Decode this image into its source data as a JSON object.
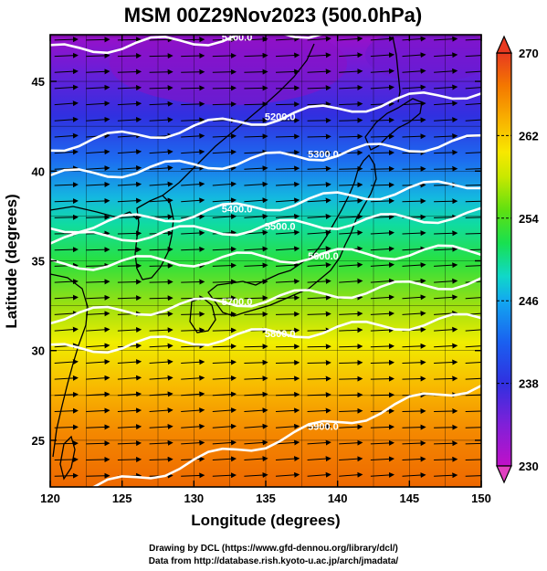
{
  "title": "MSM 00Z29Nov2023 (500.0hPa)",
  "x_axis_label": "Longitude (degrees)",
  "y_axis_label": "Latitude  (degrees)",
  "x_ticks": [
    120,
    125,
    130,
    135,
    140,
    145,
    150
  ],
  "y_ticks": [
    25,
    30,
    35,
    40,
    45
  ],
  "x_range": [
    120,
    150
  ],
  "y_range": [
    22.4,
    47.6
  ],
  "colorbar": {
    "min": 230,
    "max": 270,
    "ticks": [
      230,
      238,
      246,
      254,
      262,
      270
    ],
    "colors": [
      "#b000c8",
      "#7a1ed8",
      "#3a2ce0",
      "#1a5ef0",
      "#12a0f0",
      "#10d8d0",
      "#10e070",
      "#40e020",
      "#a0e010",
      "#f0f000",
      "#f8c000",
      "#f89000",
      "#f06000",
      "#e83020"
    ]
  },
  "contours": [
    {
      "label": "5100.0",
      "lat_at_125": 47.0,
      "lat_at_150": 48.5
    },
    {
      "label": "5200.0",
      "lat_at_125": 41.9,
      "lat_at_150": 44.5
    },
    {
      "label": "5300.0",
      "lat_at_125": 40.0,
      "lat_at_150": 41.7
    },
    {
      "label": "5400.0",
      "lat_at_125": 37.2,
      "lat_at_150": 39.4
    },
    {
      "label": "5500.0",
      "lat_at_125": 36.4,
      "lat_at_150": 37.6
    },
    {
      "label": "5600.0",
      "lat_at_125": 34.9,
      "lat_at_150": 35.6
    },
    {
      "label": "5700.0",
      "lat_at_125": 32.2,
      "lat_at_150": 33.9
    },
    {
      "label": "5800.0",
      "lat_at_125": 30.3,
      "lat_at_150": 31.8
    },
    {
      "label": "5900.0",
      "lat_at_125": 22.7,
      "lat_at_150": 28.2
    }
  ],
  "credits": {
    "line1": "Drawing by DCL (https://www.gfd-dennou.org/library/dcl/)",
    "line2": "Data from http://database.rish.kyoto-u.ac.jp/arch/jmadata/"
  }
}
